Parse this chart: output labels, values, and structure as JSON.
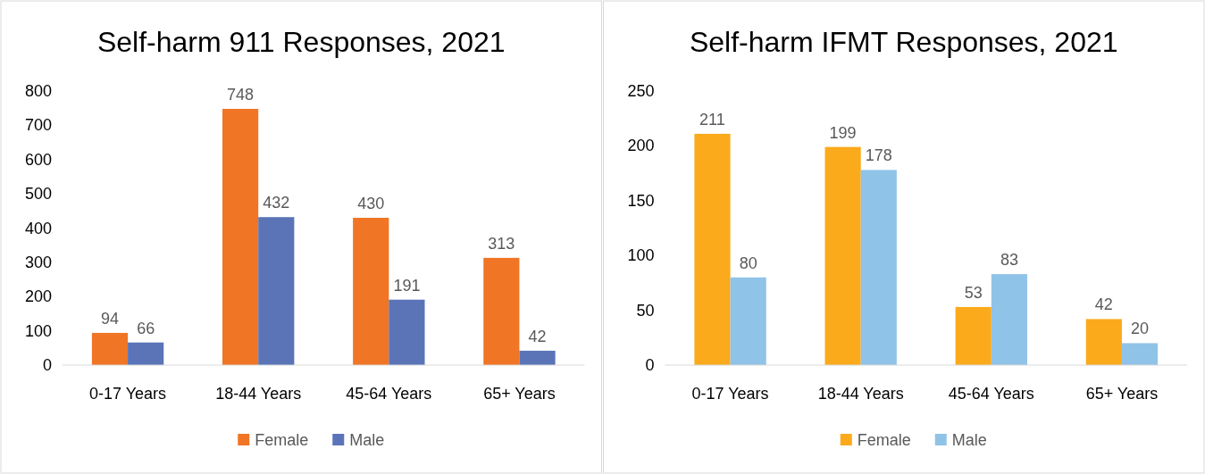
{
  "chart_data": [
    {
      "type": "bar",
      "title": "Self-harm 911 Responses, 2021",
      "categories": [
        "0-17 Years",
        "18-44 Years",
        "45-64 Years",
        "65+ Years"
      ],
      "series": [
        {
          "name": "Female",
          "color": "#f07524",
          "values": [
            94,
            748,
            430,
            313
          ]
        },
        {
          "name": "Male",
          "color": "#5b74b8",
          "values": [
            66,
            432,
            191,
            42
          ]
        }
      ],
      "ylim": [
        0,
        800
      ],
      "yticks": [
        0,
        100,
        200,
        300,
        400,
        500,
        600,
        700,
        800
      ],
      "grid": false,
      "legend": "bottom",
      "data_labels": true
    },
    {
      "type": "bar",
      "title": "Self-harm IFMT Responses, 2021",
      "categories": [
        "0-17 Years",
        "18-44 Years",
        "45-64 Years",
        "65+ Years"
      ],
      "series": [
        {
          "name": "Female",
          "color": "#fbaa1c",
          "values": [
            211,
            199,
            53,
            42
          ]
        },
        {
          "name": "Male",
          "color": "#90c3e8",
          "values": [
            80,
            178,
            83,
            20
          ]
        }
      ],
      "ylim": [
        0,
        250
      ],
      "yticks": [
        0,
        50,
        100,
        150,
        200,
        250
      ],
      "grid": false,
      "legend": "bottom",
      "data_labels": true
    }
  ]
}
